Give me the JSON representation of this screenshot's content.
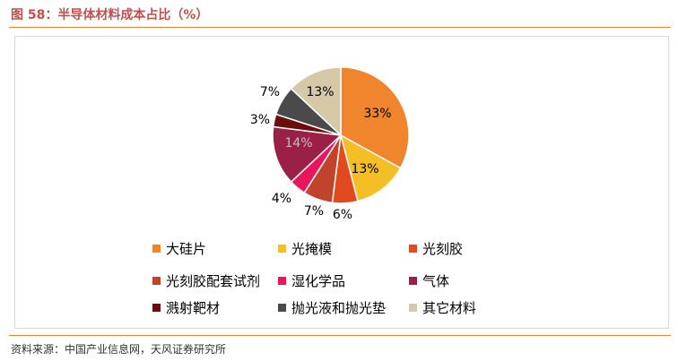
{
  "title": "图 58：半导体材料成本占比（%）",
  "source": "资料来源：中国产业信息网，天风证券研究所",
  "chart_data": {
    "type": "pie",
    "start_angle_deg": 0,
    "direction": "clockwise",
    "slices": [
      {
        "label": "大硅片",
        "value": 33,
        "text": "33%",
        "color": "#f0852d"
      },
      {
        "label": "光掩模",
        "value": 13,
        "text": "13%",
        "color": "#f4be25"
      },
      {
        "label": "光刻胶",
        "value": 6,
        "text": "6%",
        "color": "#e04a1e"
      },
      {
        "label": "光刻胶配套试剂",
        "value": 7,
        "text": "7%",
        "color": "#c0442c"
      },
      {
        "label": "湿化学品",
        "value": 4,
        "text": "4%",
        "color": "#e8175d"
      },
      {
        "label": "气体",
        "value": 14,
        "text": "14%",
        "color": "#9b2047"
      },
      {
        "label": "溅射靶材",
        "value": 3,
        "text": "3%",
        "color": "#6b0d0d"
      },
      {
        "label": "抛光液和抛光垫",
        "value": 7,
        "text": "7%",
        "color": "#4a4a4a"
      },
      {
        "label": "其它材料",
        "value": 13,
        "text": "13%",
        "color": "#d6c9a8"
      }
    ],
    "legend_position": "bottom"
  }
}
